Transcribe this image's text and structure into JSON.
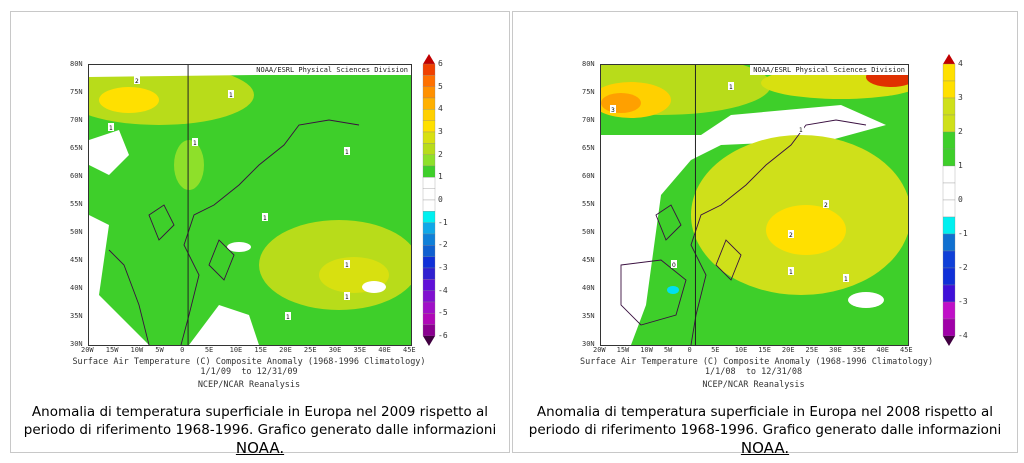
{
  "chart_data": [
    {
      "type": "heatmap",
      "title": "Surface Air Temperature (C) Composite Anomaly (1968-1996 Climatology)",
      "period": "1/1/09  to 12/31/09",
      "source_line": "NCEP/NCAR Reanalysis",
      "header": "NOAA/ESRL Physical Sciences Division",
      "xticks": [
        "20W",
        "15W",
        "10W",
        "5W",
        "0",
        "5E",
        "10E",
        "15E",
        "20E",
        "25E",
        "30E",
        "35E",
        "40E",
        "45E"
      ],
      "yticks": [
        "80N",
        "75N",
        "70N",
        "65N",
        "60N",
        "55N",
        "50N",
        "45N",
        "40N",
        "35N",
        "30N"
      ],
      "colorbar": {
        "range": [
          -6,
          6
        ],
        "step": 0.5,
        "labels": [
          "6",
          "5",
          "4",
          "3",
          "2",
          "1",
          "0",
          "-1",
          "-2",
          "-3",
          "-4",
          "-5",
          "-6"
        ]
      },
      "contour_labels": [
        "2",
        "1",
        "1",
        "1",
        "1",
        "1",
        "1",
        "1",
        "1"
      ],
      "caption": "Anomalia di temperatura superficiale in Europa nel 2009 rispetto al periodo di riferimento 1968-1996. Grafico generato dalle informazioni",
      "link": "NOAA."
    },
    {
      "type": "heatmap",
      "title": "Surface Air Temperature (C) Composite Anomaly (1968-1996 Climatology)",
      "period": "1/1/08  to 12/31/08",
      "source_line": "NCEP/NCAR Reanalysis",
      "header": "NOAA/ESRL Physical Sciences Division",
      "xticks": [
        "20W",
        "15W",
        "10W",
        "5W",
        "0",
        "5E",
        "10E",
        "15E",
        "20E",
        "25E",
        "30E",
        "35E",
        "40E",
        "45E"
      ],
      "yticks": [
        "80N",
        "75N",
        "70N",
        "65N",
        "60N",
        "55N",
        "50N",
        "45N",
        "40N",
        "35N",
        "30N"
      ],
      "colorbar": {
        "range": [
          -4,
          4
        ],
        "step": 0.5,
        "labels": [
          "4",
          "3",
          "2",
          "1",
          "0",
          "-1",
          "-2",
          "-3",
          "-4"
        ]
      },
      "contour_labels": [
        "3",
        "1",
        "1",
        "2",
        "2",
        "1",
        "1",
        "0"
      ],
      "caption": "Anomalia di temperatura superficiale in Europa nel 2008 rispetto al periodo di riferimento 1968-1996. Grafico generato dalle informazioni",
      "link": "NOAA."
    }
  ],
  "colors": {
    "green": "#3ecf2a",
    "lightgreen": "#8ee02a",
    "yellowgreen": "#cfe01a",
    "yellow": "#ffe000",
    "orange": "#ffa000",
    "red": "#e00000"
  }
}
